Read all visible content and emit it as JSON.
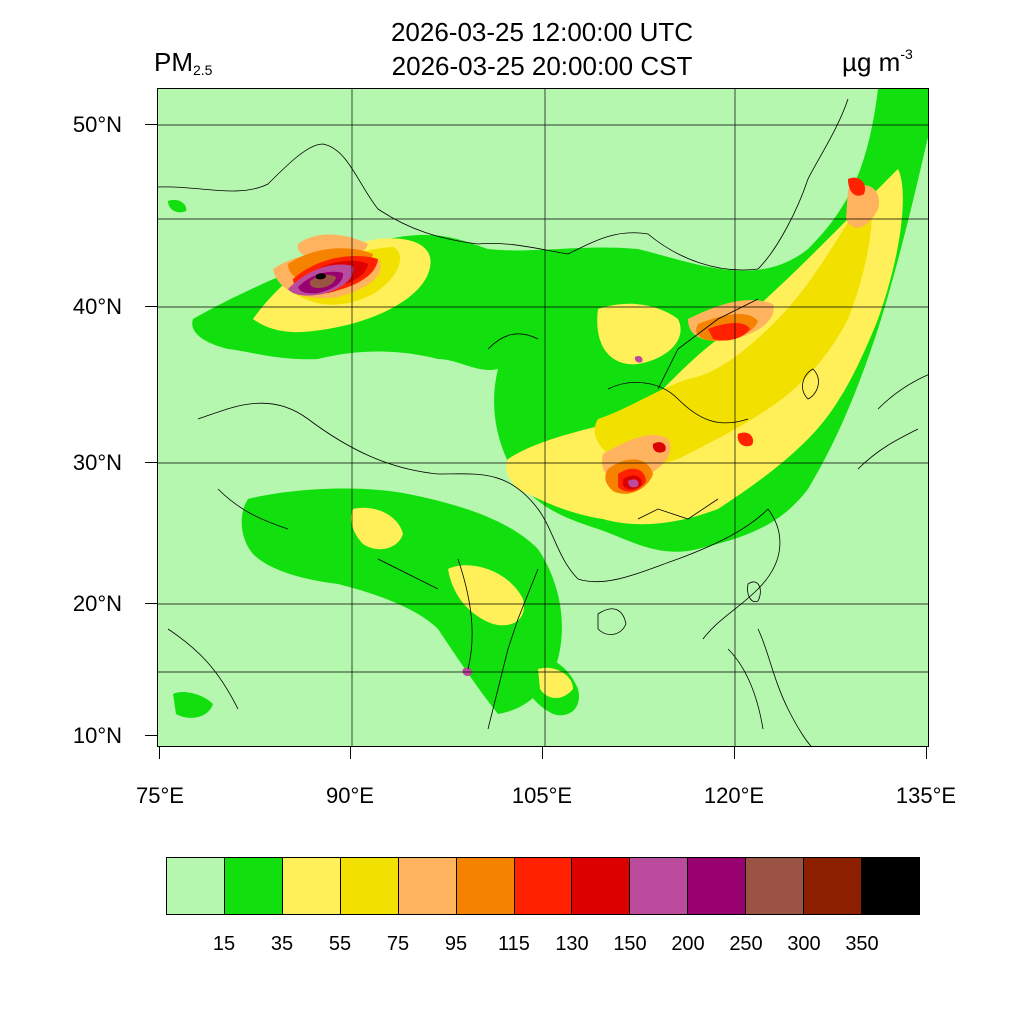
{
  "title": {
    "line1": "2026-03-25 12:00:00 UTC",
    "line2": "2026-03-25 20:00:00 CST"
  },
  "variable": {
    "name": "PM",
    "subscript": "2.5"
  },
  "units": {
    "base": "µg m",
    "superscript": "-3"
  },
  "lat_labels": [
    "50°N",
    "40°N",
    "30°N",
    "20°N",
    "10°N"
  ],
  "lon_labels": [
    "75°E",
    "90°E",
    "105°E",
    "120°E",
    "135°E"
  ],
  "legend": {
    "colors": [
      "#b5f7ae",
      "#12e00e",
      "#fff05a",
      "#f2e000",
      "#ffb35e",
      "#f58200",
      "#ff2100",
      "#dc0000",
      "#bb4b9c",
      "#990070",
      "#9b5444",
      "#8b1f00",
      "#000000"
    ],
    "thresholds": [
      "15",
      "35",
      "55",
      "75",
      "95",
      "115",
      "130",
      "150",
      "200",
      "250",
      "300",
      "350"
    ]
  }
}
